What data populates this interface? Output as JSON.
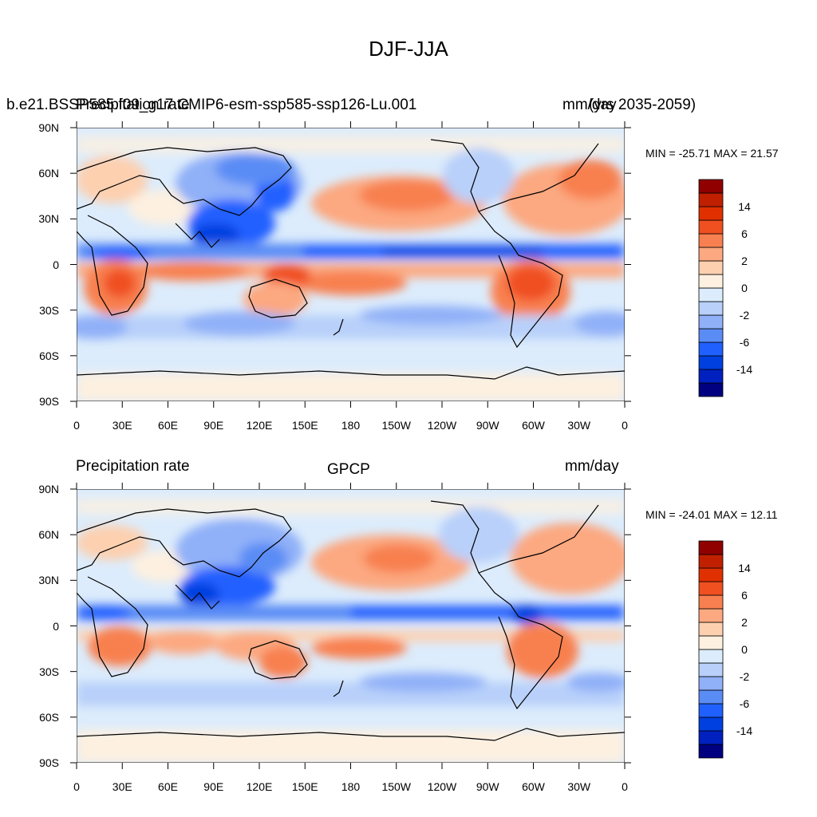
{
  "title": "DJF-JJA",
  "top_panel": {
    "left_string": "Precipitation rate",
    "center_string": "b.e21.BSSP585.f09_g17.CMIP6-esm-ssp585-ssp126-Lu.001 (yrs 2035-2059)",
    "right_string": "mm/day",
    "overlap_left": "b.e21.BSSP585.f09_g17.CMIP6-esm-ssp585-ssp126-Lu.001",
    "overlap_right": "(yrs 2035-2059)",
    "min_max": "MIN = -25.71 MAX =  21.57"
  },
  "bottom_panel": {
    "left_string": "Precipitation rate",
    "center_string": "GPCP",
    "right_string": "mm/day",
    "min_max": "MIN = -24.01 MAX =  12.11"
  },
  "lat_labels": [
    "90N",
    "60N",
    "30N",
    "0",
    "30S",
    "60S",
    "90S"
  ],
  "lon_labels": [
    "0",
    "30E",
    "60E",
    "90E",
    "120E",
    "150E",
    "180",
    "150W",
    "120W",
    "90W",
    "60W",
    "30W",
    "0"
  ],
  "colorbar": {
    "colors": [
      "#000080",
      "#0020c0",
      "#0040e0",
      "#2060ff",
      "#5a8cf5",
      "#90b0f8",
      "#b8d0fa",
      "#dcecfc",
      "#fdf0e0",
      "#fdd0b0",
      "#fca880",
      "#f88050",
      "#f05020",
      "#e03000",
      "#c02000",
      "#900000"
    ],
    "labels": [
      "-14",
      "-6",
      "-2",
      "0",
      "2",
      "6",
      "14"
    ]
  },
  "legend_colors": {
    "ocean_background": "#dcecfc",
    "land_outline": "#000000"
  }
}
